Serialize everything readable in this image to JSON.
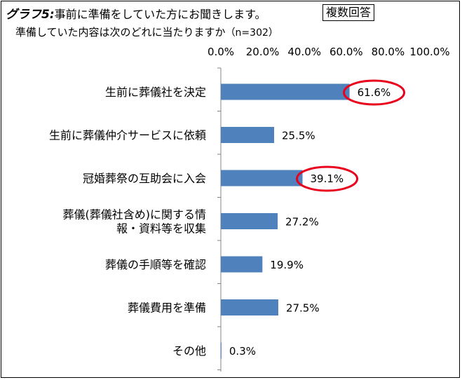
{
  "header": {
    "title_bold": "グラフ5:",
    "title_rest": "事前に準備をしていた方にお聞きします。",
    "badge": "複数回答",
    "subtitle_main": "準備していた内容は次のどれに当たりますか",
    "subtitle_n": "（n=302）"
  },
  "chart_data": {
    "type": "bar",
    "orientation": "horizontal",
    "categories": [
      [
        "生前に葬儀社を決定"
      ],
      [
        "生前に葬儀仲介サービスに依頼"
      ],
      [
        "冠婚葬祭の互助会に入会"
      ],
      [
        "葬儀(葬儀社含め)に関する情",
        "報・資料等を収集"
      ],
      [
        "葬儀の手順等を確認"
      ],
      [
        "葬儀費用を準備"
      ],
      [
        "その他"
      ]
    ],
    "values": [
      61.6,
      25.5,
      39.1,
      27.2,
      19.9,
      27.5,
      0.3
    ],
    "value_labels": [
      "61.6%",
      "25.5%",
      "39.1%",
      "27.2%",
      "19.9%",
      "27.5%",
      "0.3%"
    ],
    "highlighted": [
      0,
      2
    ],
    "xlim": [
      0,
      100
    ],
    "ticks": [
      "0.0%",
      "20.0%",
      "40.0%",
      "60.0%",
      "80.0%",
      "100.0%"
    ],
    "tick_values": [
      0,
      20,
      40,
      60,
      80,
      100
    ],
    "axis_position": "top",
    "grid": false,
    "bar_color": "#4f81bd",
    "highlight_color": "#e8001c"
  }
}
